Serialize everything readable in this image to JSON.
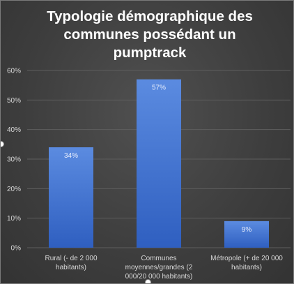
{
  "chart_data": {
    "type": "bar",
    "title_lines": [
      "Typologie démographique des",
      "communes possédant un",
      "pumptrack"
    ],
    "categories": [
      [
        "Rural (- de 2 000",
        "habitants)"
      ],
      [
        "Communes",
        "moyennes/grandes (2",
        "000/20 000 habitants)"
      ],
      [
        "Métropole (+ de 20 000",
        "habitants)"
      ]
    ],
    "values": [
      34,
      57,
      9
    ],
    "data_labels": [
      "34%",
      "57%",
      "9%"
    ],
    "y_ticks": [
      "0%",
      "10%",
      "20%",
      "30%",
      "40%",
      "50%",
      "60%"
    ],
    "ylim": [
      0,
      60
    ],
    "grid": true,
    "legend": "none",
    "colors": {
      "bar_top": "#5b8be0",
      "bar_bottom": "#2f5fc0",
      "grid": "#5e5e5e",
      "text": "#d9d9d9"
    }
  }
}
